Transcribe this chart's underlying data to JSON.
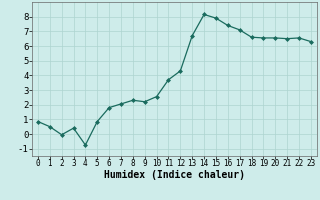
{
  "x": [
    0,
    1,
    2,
    3,
    4,
    5,
    6,
    7,
    8,
    9,
    10,
    11,
    12,
    13,
    14,
    15,
    16,
    17,
    18,
    19,
    20,
    21,
    22,
    23
  ],
  "y": [
    0.85,
    0.5,
    -0.05,
    0.4,
    -0.75,
    0.85,
    1.8,
    2.05,
    2.3,
    2.2,
    2.55,
    3.7,
    4.3,
    6.7,
    8.15,
    7.9,
    7.4,
    7.1,
    6.6,
    6.55,
    6.55,
    6.5,
    6.55,
    6.3
  ],
  "line_color": "#1a6b5e",
  "marker": "D",
  "marker_size": 2.0,
  "linewidth": 0.9,
  "xlabel": "Humidex (Indice chaleur)",
  "xlabel_fontsize": 7,
  "background_color": "#ceecea",
  "grid_color": "#aed4d0",
  "ylim": [
    -1.5,
    9.0
  ],
  "xlim": [
    -0.5,
    23.5
  ],
  "yticks": [
    -1,
    0,
    1,
    2,
    3,
    4,
    5,
    6,
    7,
    8
  ],
  "xticks": [
    0,
    1,
    2,
    3,
    4,
    5,
    6,
    7,
    8,
    9,
    10,
    11,
    12,
    13,
    14,
    15,
    16,
    17,
    18,
    19,
    20,
    21,
    22,
    23
  ],
  "tick_fontsize": 5.5,
  "ytick_fontsize": 6.5
}
